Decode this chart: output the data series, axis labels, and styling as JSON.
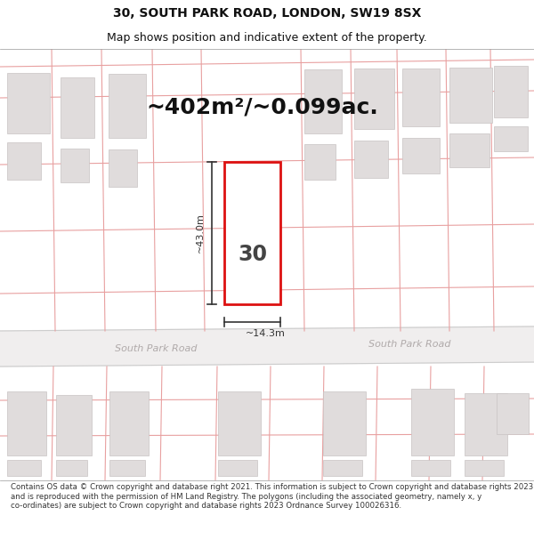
{
  "title_line1": "30, SOUTH PARK ROAD, LONDON, SW19 8SX",
  "title_line2": "Map shows position and indicative extent of the property.",
  "area_text": "~402m²/~0.099ac.",
  "property_label": "30",
  "dim_vertical": "~43.0m",
  "dim_horizontal": "~14.3m",
  "road_label_left": "South Park Road",
  "road_label_right": "South Park Road",
  "footer_text": "Contains OS data © Crown copyright and database right 2021. This information is subject to Crown copyright and database rights 2023 and is reproduced with the permission of HM Land Registry. The polygons (including the associated geometry, namely x, y co-ordinates) are subject to Crown copyright and database rights 2023 Ordnance Survey 100026316.",
  "map_bg": "#f5f3f3",
  "building_fill": "#e0dcdc",
  "building_edge": "#c8c3c3",
  "property_line_color": "#e8a0a0",
  "highlight_color": "#dd1111",
  "highlight_fill": "#ffffff",
  "dim_color": "#333333",
  "title_color": "#111111",
  "area_color": "#111111",
  "footer_color": "#333333"
}
